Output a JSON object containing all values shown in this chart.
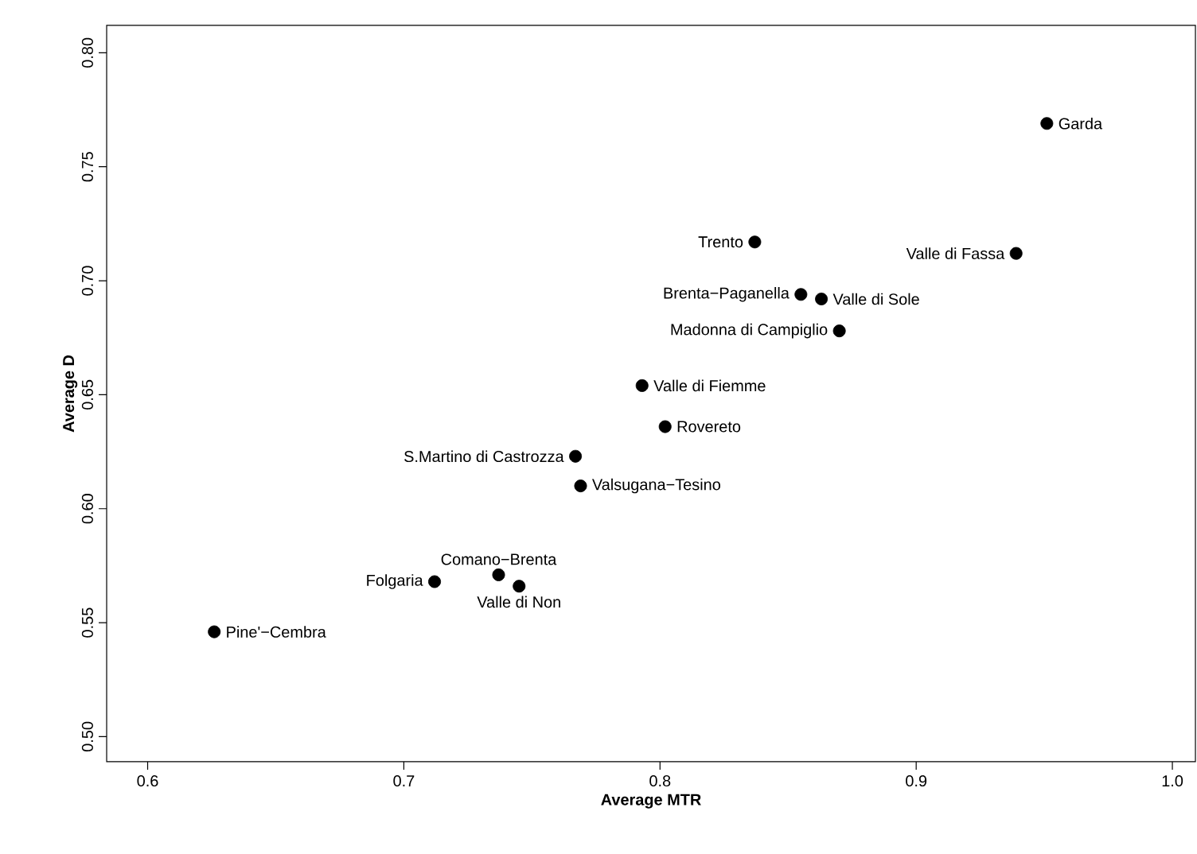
{
  "chart_data": {
    "type": "scatter",
    "xlabel": "Average MTR",
    "ylabel": "Average D",
    "xlim": [
      0.584,
      1.009
    ],
    "ylim": [
      0.489,
      0.812
    ],
    "xticks": [
      0.6,
      0.7,
      0.8,
      0.9,
      {
        "value": 1.0,
        "label": "1.0"
      }
    ],
    "yticks": [
      {
        "value": 0.5,
        "label": "0.50"
      },
      0.55,
      {
        "value": 0.6,
        "label": "0.60"
      },
      0.65,
      {
        "value": 0.7,
        "label": "0.70"
      },
      0.75,
      {
        "value": 0.8,
        "label": "0.80"
      }
    ],
    "grid": false,
    "marker": "circle",
    "series": [
      {
        "color": "#000000",
        "x": [
          0.951,
          0.837,
          0.939,
          0.855,
          0.863,
          0.87,
          0.793,
          0.802,
          0.767,
          0.769,
          0.712,
          0.737,
          0.745,
          0.626
        ],
        "values": [
          0.769,
          0.717,
          0.712,
          0.694,
          0.692,
          0.678,
          0.654,
          0.636,
          0.623,
          0.61,
          0.568,
          0.571,
          0.566,
          0.546
        ]
      }
    ],
    "annotations": [
      {
        "text": "Garda",
        "x": 0.951,
        "y": 0.769
      },
      {
        "text": "Trento",
        "x": 0.837,
        "y": 0.717
      },
      {
        "text": "Valle di Fassa",
        "x": 0.939,
        "y": 0.712
      },
      {
        "text": "Brenta−Paganella",
        "x": 0.855,
        "y": 0.694
      },
      {
        "text": "Valle di Sole",
        "x": 0.863,
        "y": 0.692
      },
      {
        "text": "Madonna di Campiglio",
        "x": 0.87,
        "y": 0.678
      },
      {
        "text": "Valle di Fiemme",
        "x": 0.793,
        "y": 0.654
      },
      {
        "text": "Rovereto",
        "x": 0.802,
        "y": 0.636
      },
      {
        "text": "S.Martino di Castrozza",
        "x": 0.767,
        "y": 0.623
      },
      {
        "text": "Valsugana−Tesino",
        "x": 0.769,
        "y": 0.61
      },
      {
        "text": "Folgaria",
        "x": 0.712,
        "y": 0.568
      },
      {
        "text": "Comano−Brenta",
        "x": 0.737,
        "y": 0.571
      },
      {
        "text": "Valle di Non",
        "x": 0.745,
        "y": 0.566
      },
      {
        "text": "Pine'−Cembra",
        "x": 0.626,
        "y": 0.546
      }
    ]
  }
}
